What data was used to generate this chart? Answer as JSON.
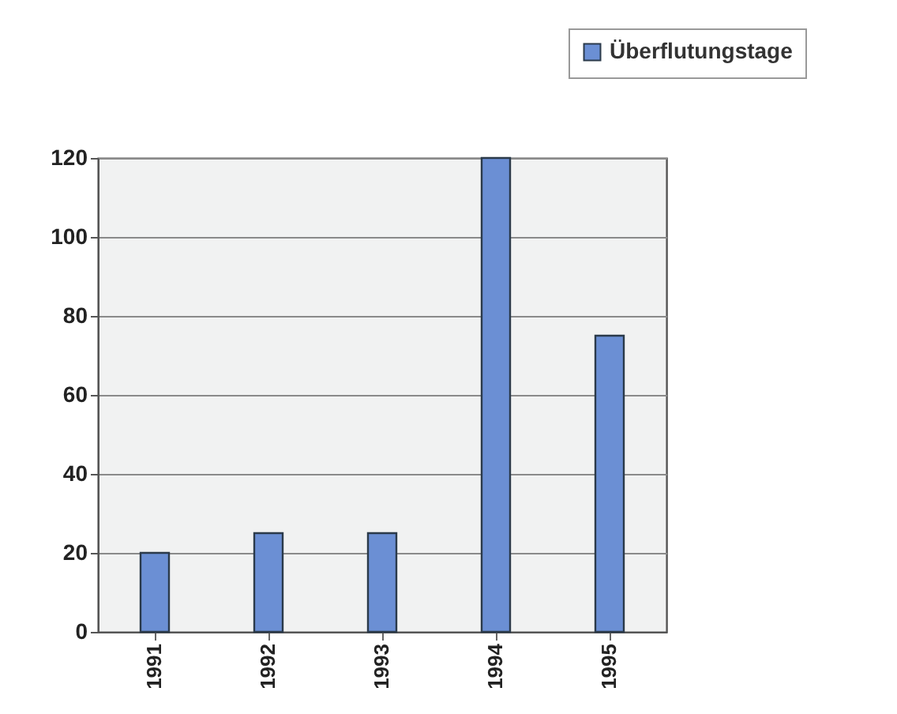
{
  "chart_data": {
    "type": "bar",
    "categories": [
      "1991",
      "1992",
      "1993",
      "1994",
      "1995"
    ],
    "series": [
      {
        "name": "Überflutungstage",
        "color": "#6b8fd4",
        "values": [
          20,
          25,
          25,
          120,
          75
        ]
      }
    ],
    "ylim": [
      0,
      120
    ],
    "yticks": [
      0,
      20,
      40,
      60,
      80,
      100,
      120
    ],
    "grid": "y",
    "legend": "top right"
  }
}
